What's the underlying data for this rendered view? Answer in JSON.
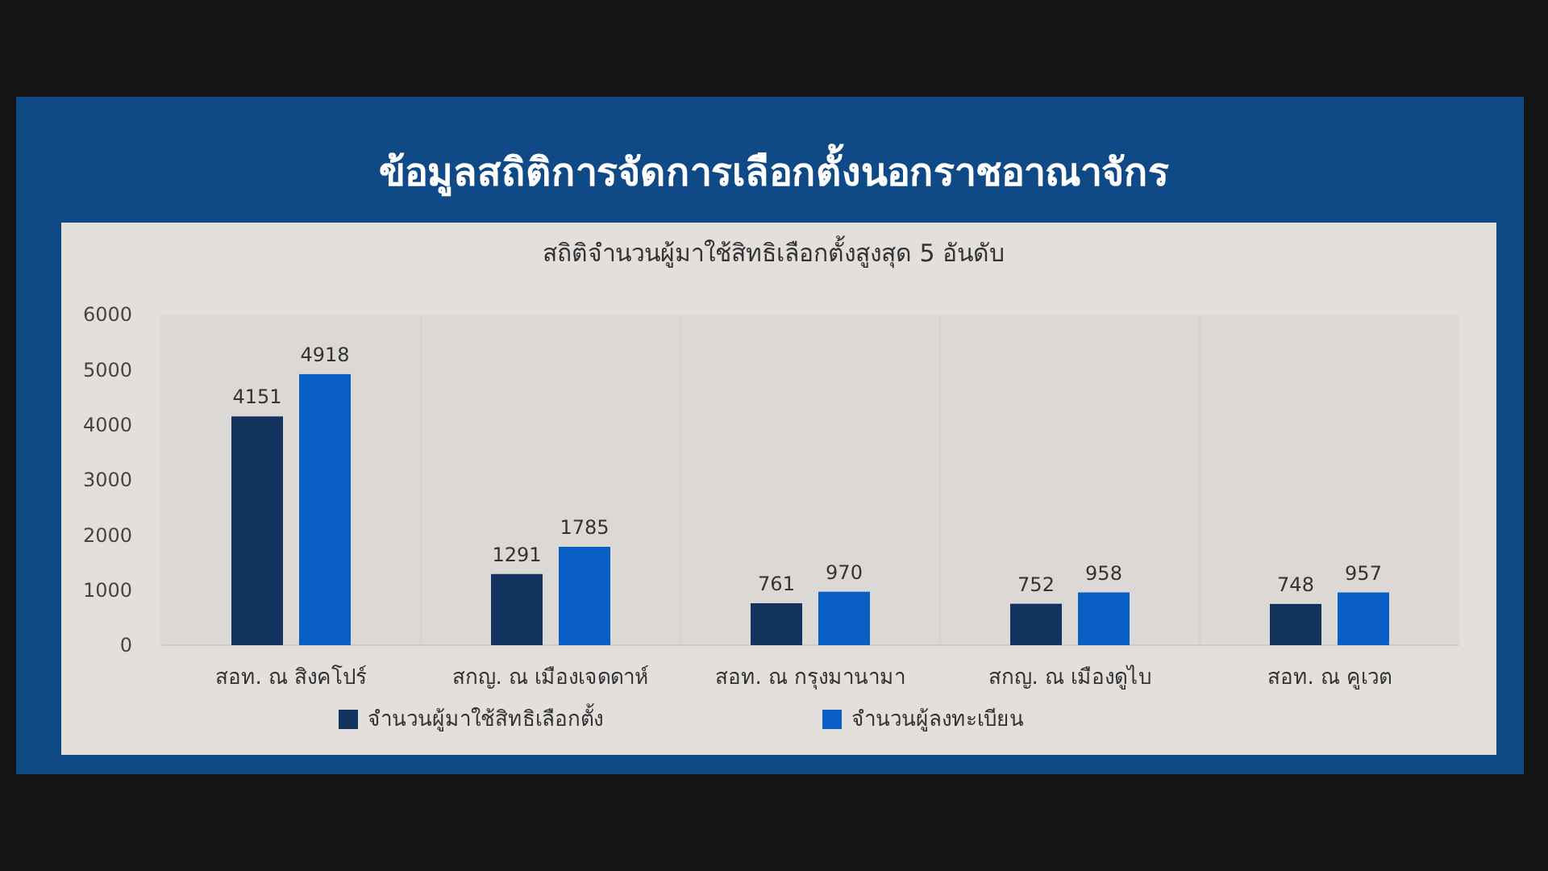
{
  "chart_data": {
    "type": "bar",
    "title": "ข้อมูลสถิติการจัดการเลือกตั้งนอกราชอาณาจักร",
    "subtitle": "สถิติจำนวนผู้มาใช้สิทธิเลือกตั้งสูงสุด 5 อันดับ",
    "categories": [
      "สอท. ณ สิงคโปร์",
      "สกญ. ณ เมืองเจดดาห์",
      "สอท. ณ กรุงมานามา",
      "สกญ. ณ เมืองดูไบ",
      "สอท. ณ คูเวต"
    ],
    "series": [
      {
        "name": "จำนวนผู้มาใช้สิทธิเลือกตั้ง",
        "color": "#12335e",
        "values": [
          4151,
          1291,
          761,
          752,
          748
        ]
      },
      {
        "name": "จำนวนผู้ลงทะเบียน",
        "color": "#0a5fc4",
        "values": [
          4918,
          1785,
          970,
          958,
          957
        ]
      }
    ],
    "ylim": [
      0,
      6000
    ],
    "yticks": [
      0,
      1000,
      2000,
      3000,
      4000,
      5000,
      6000
    ],
    "data_labels": true,
    "legend": "bottom"
  }
}
